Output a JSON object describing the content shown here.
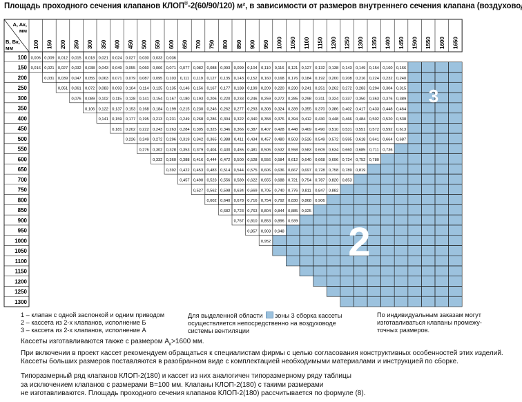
{
  "title": {
    "prefix": "Площадь проходного сечения клапанов КЛОП",
    "reg": "®",
    "suffix": "-2(60/90/120) м², в зависимости от размеров внутреннего сечения клапана (воздуховода)"
  },
  "corner": {
    "top": [
      "A, Aк,",
      "мм"
    ],
    "bottom": [
      "B, Вк,",
      "мм"
    ]
  },
  "col_headers": [
    "100",
    "150",
    "200",
    "250",
    "300",
    "350",
    "400",
    "450",
    "500",
    "550",
    "600",
    "650",
    "700",
    "750",
    "800",
    "850",
    "900",
    "950",
    "1000",
    "1050",
    "1100",
    "1150",
    "1200",
    "1250",
    "1300",
    "1350",
    "1400",
    "1450",
    "1500",
    "1550",
    "1600",
    "1650"
  ],
  "row_headers": [
    "100",
    "150",
    "200",
    "250",
    "300",
    "350",
    "400",
    "450",
    "500",
    "550",
    "600",
    "650",
    "700",
    "750",
    "800",
    "850",
    "900",
    "950",
    "1000",
    "1050",
    "1100",
    "1150",
    "1200",
    "1250",
    "1300"
  ],
  "cells": [
    [
      "0,006",
      "0,009",
      "0,012",
      "0,015",
      "0,018",
      "0,021",
      "0,024",
      "0,027",
      "0,030",
      "0,033",
      "0,036"
    ],
    [
      "0,016",
      "0,021",
      "0,027",
      "0,032",
      "0,038",
      "0,043",
      "0,049",
      "0,055",
      "0,060",
      "0,066",
      "0,071",
      "0,077",
      "0,082",
      "0,088",
      "0,093",
      "0,099",
      "0,104",
      "0,110",
      "0,116",
      "0,121",
      "0,127",
      "0,132",
      "0,138",
      "0,143",
      "0,149",
      "0,154",
      "0,160",
      "0,166"
    ],
    [
      "0,031",
      "0,039",
      "0,047",
      "0,055",
      "0,063",
      "0,071",
      "0,079",
      "0,087",
      "0,095",
      "0,103",
      "0,111",
      "0,119",
      "0,127",
      "0,135",
      "0,143",
      "0,152",
      "0,160",
      "0,168",
      "0,176",
      "0,184",
      "0,192",
      "0,200",
      "0,208",
      "0,216",
      "0,224",
      "0,232",
      "0,240"
    ],
    [
      "0,051",
      "0,061",
      "0,072",
      "0,083",
      "0,093",
      "0,104",
      "0,114",
      "0,125",
      "0,135",
      "0,146",
      "0,156",
      "0,167",
      "0,177",
      "0,188",
      "0,199",
      "0,209",
      "0,220",
      "0,230",
      "0,241",
      "0,251",
      "0,262",
      "0,272",
      "0,283",
      "0,294",
      "0,304",
      "0,315"
    ],
    [
      "0,076",
      "0,089",
      "0,102",
      "0,115",
      "0,128",
      "0,141",
      "0,154",
      "0,167",
      "0,180",
      "0,193",
      "0,206",
      "0,220",
      "0,233",
      "0,246",
      "0,259",
      "0,272",
      "0,285",
      "0,298",
      "0,311",
      "0,324",
      "0,337",
      "0,350",
      "0,363",
      "0,376",
      "0,389"
    ],
    [
      "0,106",
      "0,122",
      "0,137",
      "0,153",
      "0,168",
      "0,184",
      "0,199",
      "0,215",
      "0,230",
      "0,246",
      "0,262",
      "0,277",
      "0,293",
      "0,308",
      "0,324",
      "0,339",
      "0,355",
      "0,370",
      "0,386",
      "0,402",
      "0,417",
      "0,433",
      "0,448",
      "0,464"
    ],
    [
      "0,141",
      "0,159",
      "0,177",
      "0,195",
      "0,213",
      "0,231",
      "0,249",
      "0,268",
      "0,286",
      "0,304",
      "0,322",
      "0,340",
      "0,358",
      "0,376",
      "0,394",
      "0,412",
      "0,430",
      "0,448",
      "0,466",
      "0,484",
      "0,502",
      "0,520",
      "0,538"
    ],
    [
      "0,181",
      "0,202",
      "0,222",
      "0,243",
      "0,263",
      "0,284",
      "0,305",
      "0,325",
      "0,346",
      "0,366",
      "0,387",
      "0,407",
      "0,428",
      "0,448",
      "0,469",
      "0,490",
      "0,510",
      "0,531",
      "0,551",
      "0,572",
      "0,592",
      "0,613"
    ],
    [
      "0,226",
      "0,249",
      "0,272",
      "0,296",
      "0,319",
      "0,342",
      "0,365",
      "0,388",
      "0,411",
      "0,434",
      "0,457",
      "0,480",
      "0,503",
      "0,526",
      "0,549",
      "0,572",
      "0,595",
      "0,618",
      "0,641",
      "0,664",
      "0,687"
    ],
    [
      "0,276",
      "0,302",
      "0,328",
      "0,353",
      "0,379",
      "0,404",
      "0,430",
      "0,455",
      "0,481",
      "0,506",
      "0,532",
      "0,558",
      "0,583",
      "0,609",
      "0,634",
      "0,660",
      "0,685",
      "0,711",
      "0,736"
    ],
    [
      "0,332",
      "0,360",
      "0,388",
      "0,416",
      "0,444",
      "0,472",
      "0,500",
      "0,528",
      "0,556",
      "0,584",
      "0,612",
      "0,640",
      "0,668",
      "0,696",
      "0,724",
      "0,752",
      "0,780"
    ],
    [
      "0,392",
      "0,422",
      "0,453",
      "0,483",
      "0,514",
      "0,544",
      "0,575",
      "0,606",
      "0,636",
      "0,667",
      "0,697",
      "0,728",
      "0,758",
      "0,789",
      "0,819"
    ],
    [
      "0,457",
      "0,490",
      "0,523",
      "0,556",
      "0,589",
      "0,622",
      "0,655",
      "0,688",
      "0,721",
      "0,754",
      "0,787",
      "0,820",
      "0,853"
    ],
    [
      "0,527",
      "0,562",
      "0,598",
      "0,634",
      "0,669",
      "0,705",
      "0,740",
      "0,776",
      "0,811",
      "0,847",
      "0,882"
    ],
    [
      "0,602",
      "0,640",
      "0,678",
      "0,716",
      "0,754",
      "0,792",
      "0,830",
      "0,868",
      "0,906"
    ],
    [
      "0,682",
      "0,723",
      "0,763",
      "0,804",
      "0,844",
      "0,885",
      "0,925"
    ],
    [
      "0,767",
      "0,810",
      "0,853",
      "0,896",
      "0,939"
    ],
    [
      "0,857",
      "0,903",
      "0,948"
    ],
    [
      "0,952"
    ],
    [],
    [],
    [],
    [],
    [],
    []
  ],
  "zone_labels": {
    "zone3": "3",
    "zone2": "2"
  },
  "colors": {
    "zone_fill": "#9cc2de",
    "zone_dark": "#7aa8cc",
    "grid": "#222222",
    "white_label": "#ffffff"
  },
  "legend": {
    "left": [
      "1 –  клапан с одной заслонкой и одним приводом",
      "2 –  кассета из 2-х клапанов, исполнение Б",
      "3 –  кассета из 2-х клапанов, исполнение А"
    ],
    "middle": {
      "line1_a": "Для выделенной области",
      "line1_b": "зоны 3 сборка кассеты",
      "line2": "осуществляется непосредственно на воздуховоде",
      "line3": "системы вентиляции"
    },
    "right": [
      "По индивидуальным заказам могут",
      "изготавливаться клапаны промежу-",
      "точных размеров."
    ]
  },
  "notes": {
    "line1_a": "Кассеты изготавливаются также с размером A",
    "line1_sub": "к",
    "line1_b": ">1600 мм.",
    "line2": "При включении в проект кассет рекомендуем обращаться к специалистам фирмы с целью согласования конструктивных особенностей этих изделий.",
    "line3": "Кассеты больших размеров поставляются в разобранном виде с комплектацией необходимыми материалами и инструкцией по сборке."
  },
  "footer": [
    "Типоразмерный ряд клапанов КЛОП-2(180) и кассет из них аналогичен типоразмерному ряду таблицы",
    "за исключением клапанов с размерами B=100 мм. Клапаны КЛОП-2(180) с такими размерами",
    "не изготавливаются. Площадь проходного сечения клапанов КЛОП-2(180) рассчитывается по формуле (8)."
  ]
}
